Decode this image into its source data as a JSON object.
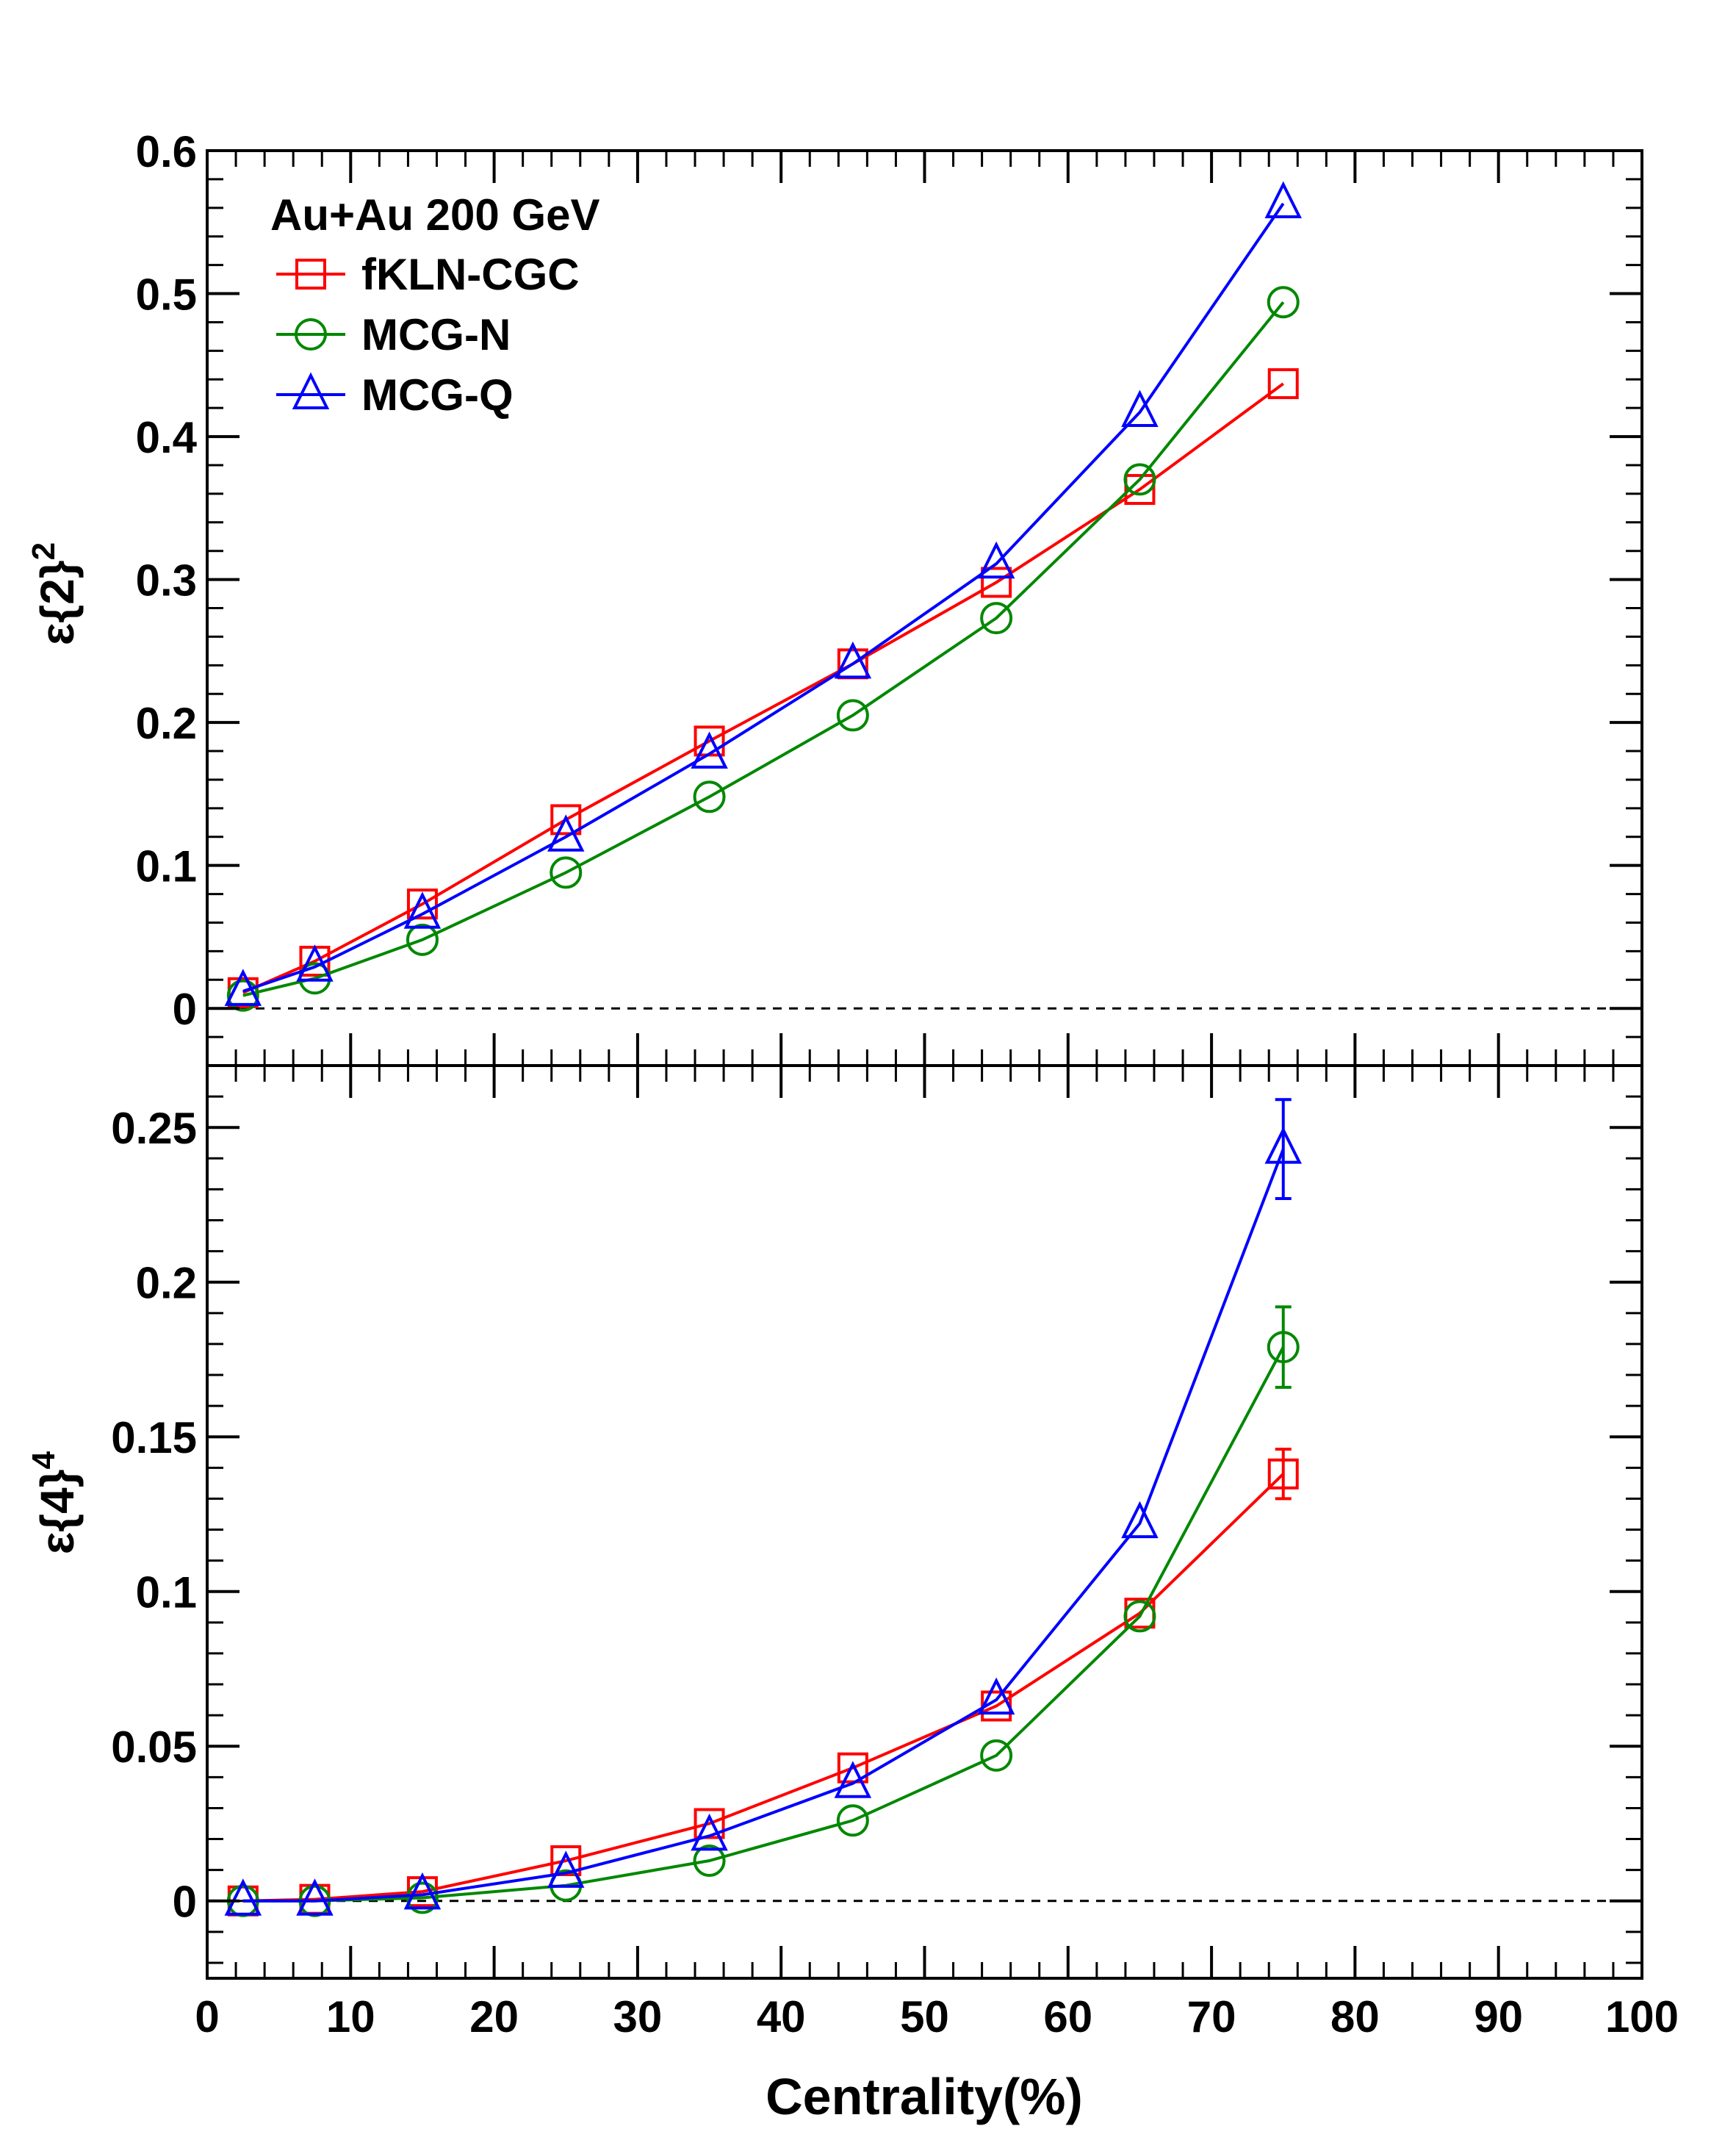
{
  "chart_data": [
    {
      "type": "line",
      "panel": "top",
      "title": "",
      "xlabel": "",
      "ylabel_base": "ε{2}",
      "ylabel_sup": "2",
      "xlim": [
        0,
        100
      ],
      "ylim": [
        -0.04,
        0.6
      ],
      "ytick_labels": [
        "0",
        "0.1",
        "0.2",
        "0.3",
        "0.4",
        "0.5",
        "0.6"
      ],
      "ytick_values": [
        0,
        0.1,
        0.2,
        0.3,
        0.4,
        0.5,
        0.6
      ],
      "zero_line": "dashed",
      "legend": {
        "placement": "top-left",
        "header": "Au+Au 200 GeV",
        "entries": [
          "fKLN-CGC",
          "MCG-N",
          "MCG-Q"
        ]
      },
      "x": [
        2.5,
        7.5,
        15,
        25,
        35,
        45,
        55,
        65,
        75
      ],
      "series": [
        {
          "name": "fKLN-CGC",
          "color": "#ff0000",
          "marker": "square",
          "values": [
            0.011,
            0.033,
            0.073,
            0.132,
            0.187,
            0.241,
            0.298,
            0.363,
            0.437
          ]
        },
        {
          "name": "MCG-N",
          "color": "#008800",
          "marker": "circle",
          "values": [
            0.009,
            0.021,
            0.048,
            0.095,
            0.148,
            0.205,
            0.273,
            0.37,
            0.494
          ]
        },
        {
          "name": "MCG-Q",
          "color": "#0000ff",
          "marker": "triangle",
          "values": [
            0.012,
            0.029,
            0.066,
            0.12,
            0.178,
            0.241,
            0.311,
            0.417,
            0.563
          ]
        }
      ]
    },
    {
      "type": "line",
      "panel": "bottom",
      "title": "",
      "xlabel": "Centrality(%)",
      "ylabel_base": "ε{4}",
      "ylabel_sup": "4",
      "xlim": [
        0,
        100
      ],
      "ylim": [
        -0.025,
        0.27
      ],
      "xtick_labels": [
        "0",
        "10",
        "20",
        "30",
        "40",
        "50",
        "60",
        "70",
        "80",
        "90",
        "100"
      ],
      "xtick_values": [
        0,
        10,
        20,
        30,
        40,
        50,
        60,
        70,
        80,
        90,
        100
      ],
      "ytick_labels": [
        "0",
        "0.05",
        "0.1",
        "0.15",
        "0.2",
        "0.25"
      ],
      "ytick_values": [
        0,
        0.05,
        0.1,
        0.15,
        0.2,
        0.25
      ],
      "zero_line": "dashed",
      "x": [
        2.5,
        7.5,
        15,
        25,
        35,
        45,
        55,
        65,
        75
      ],
      "series": [
        {
          "name": "fKLN-CGC",
          "color": "#ff0000",
          "marker": "square",
          "values": [
            0.0,
            0.0005,
            0.003,
            0.013,
            0.025,
            0.043,
            0.063,
            0.093,
            0.138
          ],
          "errors": [
            0,
            0,
            0,
            0,
            0,
            0,
            0,
            0,
            0.008
          ]
        },
        {
          "name": "MCG-N",
          "color": "#008800",
          "marker": "circle",
          "values": [
            0.0,
            0.0,
            0.001,
            0.005,
            0.013,
            0.026,
            0.047,
            0.092,
            0.179
          ],
          "errors": [
            0,
            0,
            0,
            0,
            0,
            0,
            0,
            0,
            0.013
          ]
        },
        {
          "name": "MCG-Q",
          "color": "#0000ff",
          "marker": "triangle",
          "values": [
            0.0,
            0.0,
            0.002,
            0.009,
            0.021,
            0.038,
            0.065,
            0.122,
            0.243
          ],
          "errors": [
            0,
            0,
            0,
            0,
            0,
            0,
            0,
            0,
            0.016
          ]
        }
      ]
    }
  ]
}
